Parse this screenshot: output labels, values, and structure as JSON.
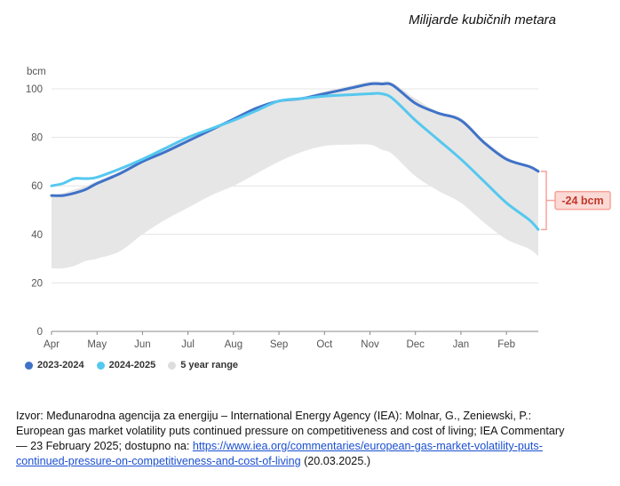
{
  "header": {
    "subtitle": "Milijarde kubičnih metara"
  },
  "chart_data": {
    "type": "line",
    "ylabel": "bcm",
    "ylim": [
      0,
      100
    ],
    "yticks": [
      0,
      20,
      40,
      60,
      80,
      100
    ],
    "categories": [
      "Apr",
      "May",
      "Jun",
      "Jul",
      "Aug",
      "Sep",
      "Oct",
      "Nov",
      "Dec",
      "Jan",
      "Feb"
    ],
    "x": [
      0,
      0.25,
      0.5,
      0.75,
      1,
      1.5,
      2,
      2.5,
      3,
      3.5,
      4,
      4.5,
      5,
      5.5,
      6,
      6.5,
      7,
      7.25,
      7.5,
      8,
      8.5,
      9,
      9.5,
      10,
      10.5,
      10.7
    ],
    "series": [
      {
        "name": "2023-2024",
        "color": "#3f72c8",
        "values": [
          56,
          56,
          57,
          58.5,
          61,
          65,
          70,
          74,
          78.5,
          83,
          87.5,
          92,
          95,
          96,
          98,
          100,
          102,
          102,
          101.5,
          94,
          90,
          87,
          78,
          71,
          68,
          66
        ]
      },
      {
        "name": "2024-2025",
        "color": "#55c8ef",
        "values": [
          60,
          61,
          63,
          63,
          63.5,
          67,
          71,
          75.5,
          80,
          83.5,
          87,
          91,
          95,
          96,
          97,
          97.5,
          98,
          98,
          96,
          87,
          79,
          71,
          62,
          53,
          46,
          42
        ]
      }
    ],
    "range": {
      "name": "5 year range",
      "color": "#e6e6e6",
      "upper": [
        56,
        57,
        58.5,
        60,
        62,
        66,
        71,
        75,
        80,
        84,
        88,
        92,
        95,
        96.5,
        99,
        101,
        103,
        103,
        102.5,
        96,
        90.5,
        88,
        79,
        72,
        68,
        67
      ],
      "lower": [
        26,
        26,
        27,
        29,
        30,
        33,
        40,
        46,
        51,
        56,
        60,
        65,
        70,
        74,
        76.5,
        77,
        77,
        75,
        73,
        64,
        58,
        53,
        45,
        38,
        34,
        31
      ]
    },
    "annotation": {
      "label": "-24 bcm",
      "from": 66,
      "to": 42,
      "color": "#f7a29b"
    },
    "grid": true,
    "legend_position": "bottom-left"
  },
  "legend": [
    {
      "label": "2023-2024",
      "color": "#3f72c8"
    },
    {
      "label": "2024-2025",
      "color": "#55c8ef"
    },
    {
      "label": "5 year range",
      "color": "#dddddd"
    }
  ],
  "source": {
    "text": "Izvor: Međunarodna agencija za energiju – International Energy Agency (IEA): Molnar, G., Zeniewski, P.: European gas market volatility puts continued pressure on competitiveness and cost of living; IEA Commentary — 23 February 2025; dostupno na: ",
    "link": "https://www.iea.org/commentaries/european-gas-market-volatility-puts-continued-pressure-on-competitiveness-and-cost-of-living",
    "suffix": " (20.03.2025.)"
  }
}
